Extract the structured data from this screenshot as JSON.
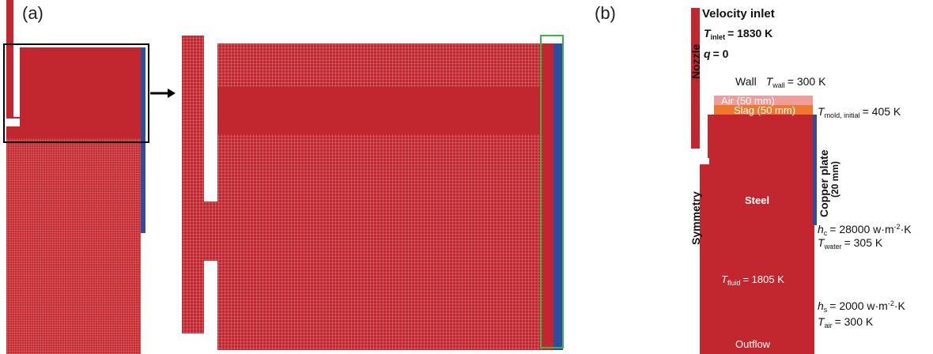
{
  "panel_a": {
    "label": "(a)"
  },
  "panel_b": {
    "label": "(b)",
    "velocity_inlet": "Velocity inlet",
    "t_inlet": {
      "symbol": "T",
      "subscript": "inlet",
      "rest": "= 1830 K"
    },
    "q": {
      "symbol": "q",
      "rest": "= 0"
    },
    "nozzle": "Nozzle",
    "wall": {
      "name": "Wall",
      "symbol": "T",
      "subscript": "wall",
      "rest": "= 300 K"
    },
    "air": "Air (50 mm)",
    "slag": "Slag (50 mm)",
    "t_mold": {
      "symbol": "T",
      "subscript": "mold, initial",
      "rest": "= 405 K"
    },
    "copper_plate": {
      "line1": "Copper plate",
      "line2": "(20 mm)"
    },
    "steel": "Steel",
    "symmetry": "Symmetry",
    "h_c": {
      "symbol": "h",
      "subscript": "c",
      "rest": "= 28000 w·m",
      "superscript": "-2",
      "tail": "·K"
    },
    "t_water": {
      "symbol": "T",
      "subscript": "water",
      "rest": "= 305 K"
    },
    "t_fluid": {
      "symbol": "T",
      "subscript": "fluid",
      "rest": "= 1805 K"
    },
    "h_s": {
      "symbol": "h",
      "subscript": "s",
      "rest": "= 2000 w·m",
      "superscript": "-2",
      "tail": "·K"
    },
    "t_air": {
      "symbol": "T",
      "subscript": "air",
      "rest": "= 300 K"
    },
    "outflow": "Outflow"
  }
}
